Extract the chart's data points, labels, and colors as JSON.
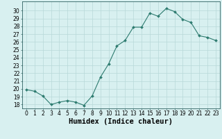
{
  "x": [
    0,
    1,
    2,
    3,
    4,
    5,
    6,
    7,
    8,
    9,
    10,
    11,
    12,
    13,
    14,
    15,
    16,
    17,
    18,
    19,
    20,
    21,
    22,
    23
  ],
  "y": [
    19.9,
    19.7,
    19.1,
    18.0,
    18.3,
    18.5,
    18.3,
    17.9,
    19.1,
    21.5,
    23.2,
    25.5,
    26.2,
    27.9,
    27.9,
    29.7,
    29.3,
    30.3,
    29.9,
    28.9,
    28.5,
    26.8,
    26.6,
    26.2
  ],
  "line_color": "#2d7b6f",
  "marker": "D",
  "marker_size": 2.0,
  "bg_color": "#d8f0f0",
  "grid_color": "#b8d8d8",
  "xlabel": "Humidex (Indice chaleur)",
  "ylim": [
    17.5,
    31.2
  ],
  "xlim": [
    -0.5,
    23.5
  ],
  "yticks": [
    18,
    19,
    20,
    21,
    22,
    23,
    24,
    25,
    26,
    27,
    28,
    29,
    30
  ],
  "xticks": [
    0,
    1,
    2,
    3,
    4,
    5,
    6,
    7,
    8,
    9,
    10,
    11,
    12,
    13,
    14,
    15,
    16,
    17,
    18,
    19,
    20,
    21,
    22,
    23
  ],
  "tick_label_fontsize": 5.5,
  "xlabel_fontsize": 7.5,
  "axis_color": "#2d6060",
  "linewidth": 0.8
}
